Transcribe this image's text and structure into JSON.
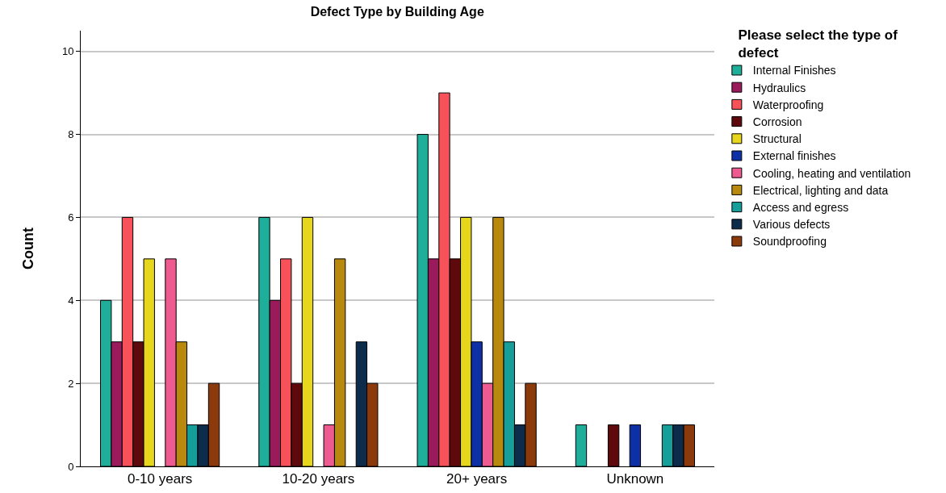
{
  "chart_data": {
    "type": "bar",
    "title": "Defect Type by Building Age",
    "ylabel": "Count",
    "legend_title": "Please select the type of defect",
    "categories": [
      "0-10 years",
      "10-20 years",
      "20+ years",
      "Unknown"
    ],
    "series": [
      {
        "name": "Internal Finishes",
        "color": "#1fae9a",
        "values": [
          4,
          6,
          8,
          1
        ]
      },
      {
        "name": "Hydraulics",
        "color": "#9a1a5c",
        "values": [
          3,
          4,
          5,
          null
        ]
      },
      {
        "name": "Waterproofing",
        "color": "#f7525a",
        "values": [
          6,
          5,
          9,
          null
        ]
      },
      {
        "name": "Corrosion",
        "color": "#5e0a0c",
        "values": [
          3,
          2,
          5,
          1
        ]
      },
      {
        "name": "Structural",
        "color": "#e6d61c",
        "values": [
          5,
          6,
          6,
          null
        ]
      },
      {
        "name": "External finishes",
        "color": "#0e30a6",
        "values": [
          null,
          null,
          3,
          1
        ]
      },
      {
        "name": "Cooling, heating and ventilation",
        "color": "#ee5b90",
        "values": [
          5,
          1,
          2,
          null
        ]
      },
      {
        "name": "Electrical, lighting and data",
        "color": "#b8890c",
        "values": [
          3,
          5,
          6,
          null
        ]
      },
      {
        "name": "Access and egress",
        "color": "#169e9b",
        "values": [
          1,
          null,
          3,
          1
        ]
      },
      {
        "name": "Various defects",
        "color": "#0d2b4b",
        "values": [
          1,
          3,
          1,
          1
        ]
      },
      {
        "name": "Soundproofing",
        "color": "#8c3a0c",
        "values": [
          2,
          2,
          2,
          1
        ]
      }
    ],
    "ylim": [
      0,
      10.5
    ],
    "yticks": [
      0,
      2,
      4,
      6,
      8,
      10
    ],
    "grid": "y",
    "legend": "right"
  }
}
